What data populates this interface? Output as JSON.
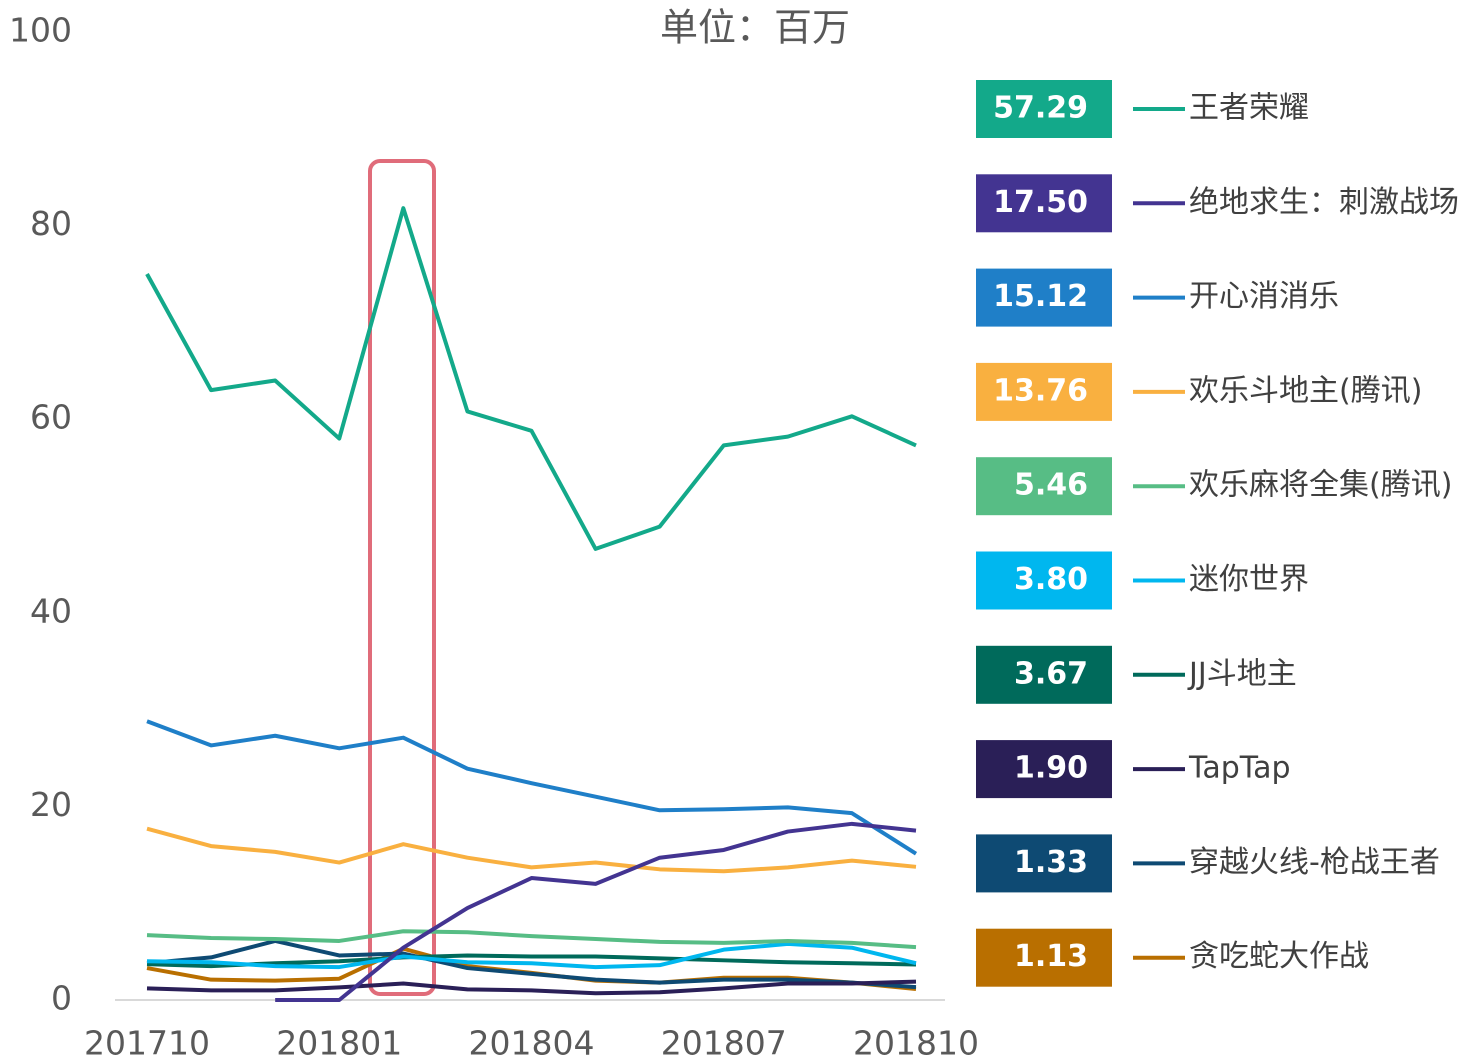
{
  "chart_data": {
    "type": "line",
    "title": "单位：百万",
    "categories": [
      "201710",
      null,
      null,
      "201801",
      null,
      null,
      "201804",
      null,
      null,
      "201807",
      null,
      null,
      "201810"
    ],
    "ylim": [
      0,
      100
    ],
    "yticks": [
      0,
      20,
      40,
      60,
      80,
      100
    ],
    "grid": false,
    "series": [
      {
        "name": "王者荣耀",
        "color": "#13a98a",
        "values": [
          75.0,
          63.0,
          64.0,
          58.0,
          81.8,
          60.8,
          58.8,
          46.6,
          48.9,
          57.3,
          58.2,
          60.3,
          57.29
        ],
        "value_labels": [
          null,
          null,
          null,
          null,
          null,
          null,
          null,
          null,
          null,
          null,
          null,
          null,
          "57.29"
        ]
      },
      {
        "name": "绝地求生：刺激战场",
        "color": "#433491",
        "values": [
          null,
          null,
          0,
          0,
          5.4,
          9.5,
          12.6,
          12.0,
          14.7,
          15.5,
          17.4,
          18.2,
          17.5
        ],
        "value_labels": [
          null,
          null,
          null,
          null,
          null,
          null,
          null,
          null,
          null,
          null,
          null,
          null,
          "17.50"
        ]
      },
      {
        "name": "开心消消乐",
        "color": "#1f7fc8",
        "values": [
          28.8,
          26.3,
          27.3,
          26.0,
          27.1,
          23.9,
          22.4,
          21.0,
          19.6,
          19.7,
          19.9,
          19.3,
          15.12
        ],
        "value_labels": [
          null,
          null,
          null,
          null,
          null,
          null,
          null,
          null,
          null,
          null,
          null,
          null,
          "15.12"
        ]
      },
      {
        "name": "欢乐斗地主(腾讯)",
        "color": "#f9b040",
        "values": [
          17.7,
          15.9,
          15.3,
          14.2,
          16.1,
          14.7,
          13.7,
          14.2,
          13.5,
          13.3,
          13.7,
          14.4,
          13.76
        ],
        "value_labels": [
          null,
          null,
          null,
          null,
          null,
          null,
          null,
          null,
          null,
          null,
          null,
          null,
          "13.76"
        ]
      },
      {
        "name": "欢乐麻将全集(腾讯)",
        "color": "#57bd85",
        "values": [
          6.7,
          6.4,
          6.3,
          6.1,
          7.1,
          7.0,
          6.6,
          6.3,
          6.0,
          5.9,
          6.1,
          5.9,
          5.46
        ],
        "value_labels": [
          null,
          null,
          null,
          null,
          null,
          null,
          null,
          null,
          null,
          null,
          null,
          null,
          "5.46"
        ]
      },
      {
        "name": "迷你世界",
        "color": "#00b7ef",
        "values": [
          4.0,
          3.9,
          3.5,
          3.4,
          4.5,
          3.9,
          3.8,
          3.4,
          3.6,
          5.2,
          5.8,
          5.4,
          3.8
        ],
        "value_labels": [
          null,
          null,
          null,
          null,
          null,
          null,
          null,
          null,
          null,
          null,
          null,
          null,
          "3.80"
        ]
      },
      {
        "name": "JJ斗地主",
        "color": "#006a5b",
        "values": [
          3.7,
          3.5,
          3.8,
          4.0,
          4.4,
          4.6,
          4.5,
          4.5,
          4.3,
          4.1,
          3.9,
          3.8,
          3.67
        ],
        "value_labels": [
          null,
          null,
          null,
          null,
          null,
          null,
          null,
          null,
          null,
          null,
          null,
          null,
          "3.67"
        ]
      },
      {
        "name": "TapTap",
        "color": "#2a1f57",
        "values": [
          1.2,
          1.0,
          1.0,
          1.3,
          1.7,
          1.1,
          1.0,
          0.7,
          0.8,
          1.2,
          1.7,
          1.7,
          1.9
        ],
        "value_labels": [
          null,
          null,
          null,
          null,
          null,
          null,
          null,
          null,
          null,
          null,
          null,
          null,
          "1.90"
        ]
      },
      {
        "name": "穿越火线-枪战王者",
        "color": "#0e4a73",
        "values": [
          3.8,
          4.4,
          6.1,
          4.6,
          4.8,
          3.3,
          2.7,
          2.1,
          1.8,
          2.1,
          2.1,
          1.8,
          1.33
        ],
        "value_labels": [
          null,
          null,
          null,
          null,
          null,
          null,
          null,
          null,
          null,
          null,
          null,
          null,
          "1.33"
        ]
      },
      {
        "name": "贪吃蛇大作战",
        "color": "#b96f00",
        "values": [
          3.3,
          2.1,
          2.0,
          2.2,
          5.3,
          3.5,
          2.8,
          2.0,
          1.8,
          2.3,
          2.3,
          1.8,
          1.13
        ],
        "value_labels": [
          null,
          null,
          null,
          null,
          null,
          null,
          null,
          null,
          null,
          null,
          null,
          null,
          "1.13"
        ]
      }
    ]
  }
}
